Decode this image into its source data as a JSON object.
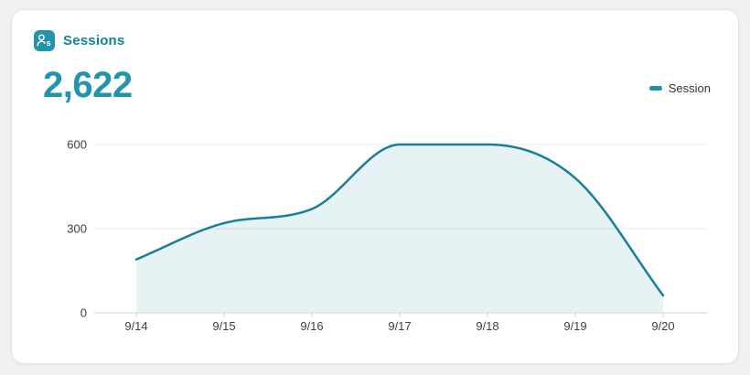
{
  "card": {
    "header": {
      "title": "Sessions",
      "icon": "sessions-icon"
    },
    "total": "2,622",
    "legend": {
      "label": "Session",
      "marker_color": "#1d8fa6"
    }
  },
  "chart_data": {
    "type": "area",
    "title": "Sessions",
    "x": [
      "9/14",
      "9/15",
      "9/16",
      "9/17",
      "9/18",
      "9/19",
      "9/20"
    ],
    "series": [
      {
        "name": "Session",
        "values": [
          190,
          320,
          370,
          600,
          600,
          480,
          62
        ]
      }
    ],
    "total_label": "2,622",
    "ylim": [
      0,
      600
    ],
    "yticks": [
      0,
      300,
      600
    ],
    "grid": true,
    "legend_position": "top-right",
    "line_color": "#187f9b",
    "fill_color": "#187f9b",
    "fill_opacity": 0.1,
    "grid_color": "#e9e9e9",
    "axis_color": "#d7d7d7",
    "tick_color": "#cfcfcf",
    "tick_label_color": "#3f3f3f"
  },
  "colors": {
    "accent_teal": "#2193ab",
    "title_teal": "#0f8494",
    "number_teal": "#2095ad"
  }
}
